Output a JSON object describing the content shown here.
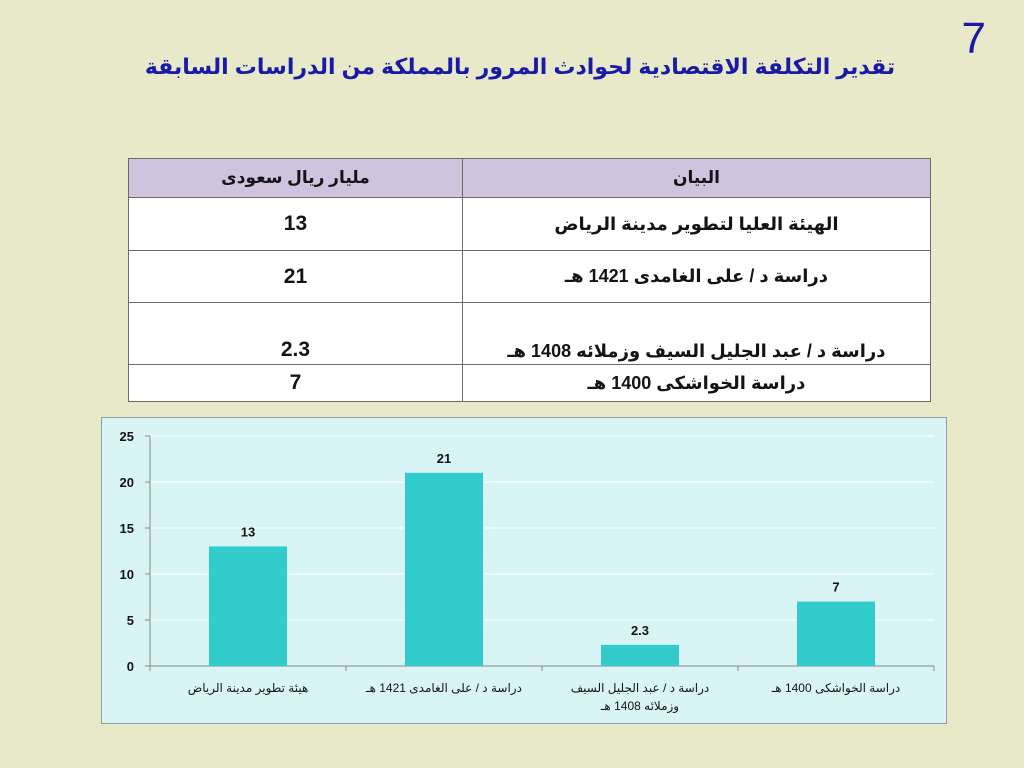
{
  "slide": {
    "number": "7",
    "title": "تقدير التكلفة الاقتصادية لحوادث المرور بالمملكة من الدراسات السابقة"
  },
  "table": {
    "headers": {
      "label": "البيان",
      "value": "مليار ريال سعودى"
    },
    "rows": [
      {
        "label": "الهيئة العليا لتطوير مدينة الرياض",
        "value": "13"
      },
      {
        "label": "دراسة د / على الغامدى 1421 هـ",
        "value": "21"
      },
      {
        "label": "دراسة د / عبد الجليل السيف وزملائه 1408 هـ",
        "value": "2.3"
      },
      {
        "label": "دراسة الخواشكى 1400 هـ",
        "value": "7"
      }
    ]
  },
  "chart_data": {
    "type": "bar",
    "categories": [
      [
        "هيئة تطوير مدينة الرياض"
      ],
      [
        "دراسة د / على الغامدى 1421 هـ"
      ],
      [
        "دراسة د / عبد الجليل السيف",
        "وزملائه 1408 هـ"
      ],
      [
        "دراسة الخواشكى 1400 هـ"
      ]
    ],
    "values": [
      13,
      21,
      2.3,
      7
    ],
    "value_labels": [
      "13",
      "21",
      "2.3",
      "7"
    ],
    "ylim": [
      0,
      25
    ],
    "yticks": [
      0,
      5,
      10,
      15,
      20,
      25
    ],
    "grid": true,
    "colors": {
      "bar": "#33cccc",
      "grid": "#ffffff",
      "axis": "#8a8a8a",
      "text": "#141414"
    }
  }
}
